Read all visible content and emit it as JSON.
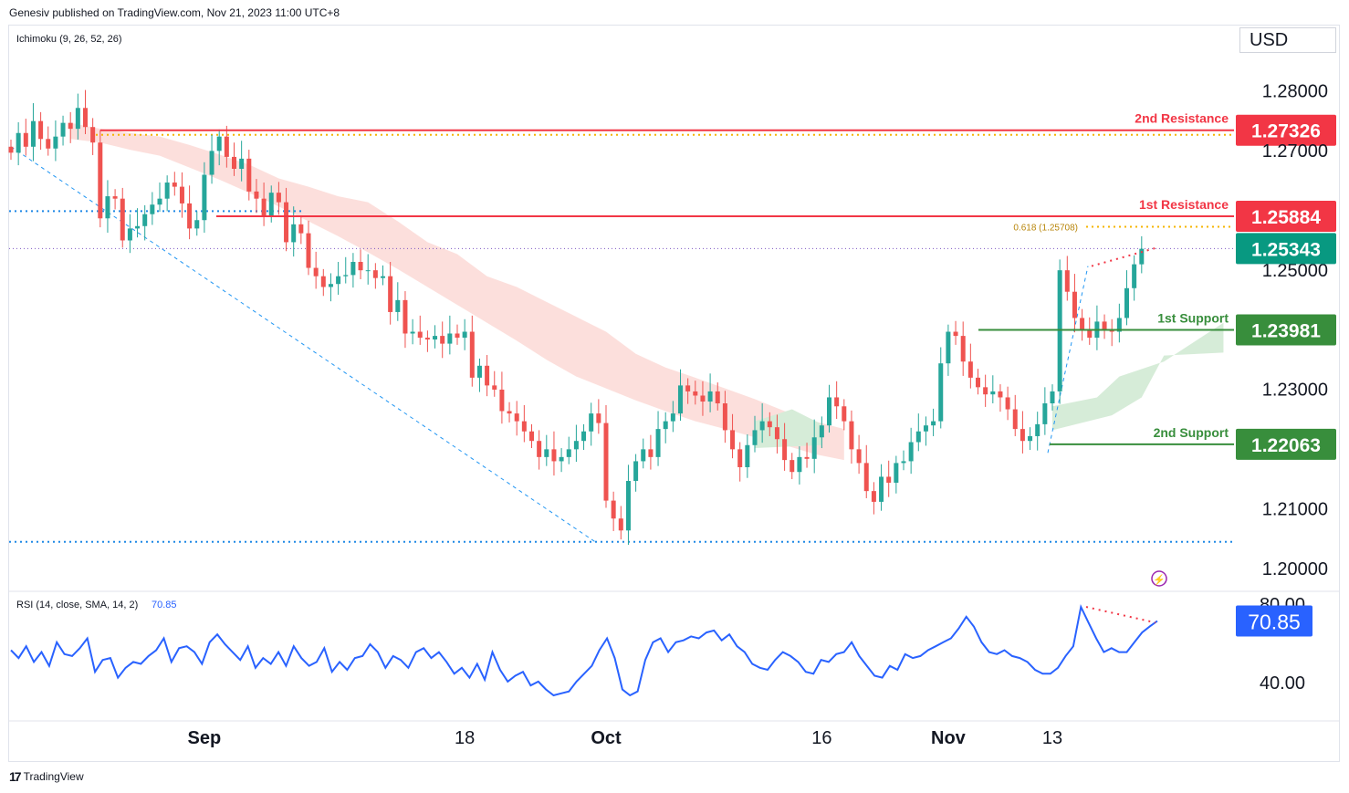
{
  "header": {
    "publisher_text": "Genesiv published on TradingView.com, Nov 21, 2023 11:00 UTC+8",
    "indicator_label": "Ichimoku (9, 26, 52, 26)",
    "currency": "USD"
  },
  "footer": {
    "logo_glyph": "17",
    "brand": "TradingView"
  },
  "colors": {
    "up": "#26a69a",
    "down": "#ef5350",
    "resistance": "#f23645",
    "support": "#388e3c",
    "current": "#089981",
    "rsi": "#2962ff",
    "kumo_bear": "#fcd9d6",
    "kumo_bull": "#d6ecd8",
    "fib": "#f5b400",
    "trendline": "#2196f3"
  },
  "chart_data": [
    {
      "type": "candlestick",
      "title": "",
      "price_axis": {
        "ticks": [
          "1.28000",
          "1.27000",
          "1.25000",
          "1.23000",
          "1.21000",
          "1.20000"
        ],
        "tick_values": [
          1.28,
          1.27,
          1.25,
          1.23,
          1.21,
          1.2
        ],
        "ylim": [
          1.196,
          1.2905
        ]
      },
      "time_axis": {
        "labels": [
          "Sep",
          "18",
          "Oct",
          "16",
          "Nov",
          "13"
        ],
        "label_bars": [
          26,
          61,
          80,
          109,
          126,
          140
        ],
        "bold": [
          true,
          false,
          true,
          false,
          true,
          false
        ]
      },
      "levels": [
        {
          "name": "2nd Resistance",
          "value": "1.27326",
          "price": 1.27326,
          "kind": "resistance"
        },
        {
          "name": "1st Resistance",
          "value": "1.25884",
          "price": 1.25884,
          "kind": "resistance"
        },
        {
          "name": "1st Support",
          "value": "1.23981",
          "price": 1.23981,
          "kind": "support"
        },
        {
          "name": "2nd Support",
          "value": "1.22063",
          "price": 1.22063,
          "kind": "support"
        }
      ],
      "current_price": {
        "value": "1.25343",
        "price": 1.25343
      },
      "fib_label": "0.618 (1.25708)",
      "fib_price": 1.25708,
      "dotted_levels": [
        1.2725,
        1.2597,
        1.2043
      ],
      "close_series": [
        1.2695,
        1.2728,
        1.2705,
        1.2748,
        1.2718,
        1.2702,
        1.2722,
        1.2745,
        1.2735,
        1.277,
        1.2738,
        1.2712,
        1.2585,
        1.2622,
        1.2618,
        1.2548,
        1.2568,
        1.2572,
        1.2592,
        1.2608,
        1.2618,
        1.2645,
        1.2638,
        1.261,
        1.2568,
        1.2582,
        1.2658,
        1.2698,
        1.2722,
        1.2688,
        1.2668,
        1.2685,
        1.263,
        1.2618,
        1.259,
        1.2628,
        1.2612,
        1.2545,
        1.2575,
        1.256,
        1.2502,
        1.2488,
        1.247,
        1.2475,
        1.2488,
        1.249,
        1.2512,
        1.2498,
        1.2498,
        1.2485,
        1.2488,
        1.2428,
        1.2448,
        1.2392,
        1.2395,
        1.2385,
        1.2382,
        1.2388,
        1.2375,
        1.2392,
        1.2385,
        1.2395,
        1.2318,
        1.2338,
        1.2305,
        1.2298,
        1.2262,
        1.2258,
        1.2245,
        1.2228,
        1.2212,
        1.2185,
        1.2198,
        1.2178,
        1.2185,
        1.2198,
        1.2212,
        1.2228,
        1.2258,
        1.2242,
        1.2112,
        1.2082,
        1.2062,
        1.2145,
        1.2178,
        1.2198,
        1.2185,
        1.2232,
        1.2245,
        1.2258,
        1.2305,
        1.2295,
        1.2288,
        1.2278,
        1.2295,
        1.2275,
        1.223,
        1.2198,
        1.2168,
        1.2205,
        1.223,
        1.2245,
        1.2235,
        1.2215,
        1.218,
        1.216,
        1.2185,
        1.2182,
        1.2218,
        1.2238,
        1.2285,
        1.227,
        1.2245,
        1.2198,
        1.2175,
        1.2128,
        1.211,
        1.2152,
        1.2142,
        1.2175,
        1.2178,
        1.221,
        1.2228,
        1.2238,
        1.2245,
        1.2342,
        1.2395,
        1.2388,
        1.2345,
        1.2318,
        1.2302,
        1.229,
        1.2295,
        1.2285,
        1.2265,
        1.2232,
        1.2212,
        1.222,
        1.224,
        1.2275,
        1.2295,
        1.2498,
        1.2462,
        1.2418,
        1.2398,
        1.2385,
        1.2412,
        1.2398,
        1.2395,
        1.2418,
        1.2468,
        1.2508,
        1.2534
      ],
      "ichimoku_cloud": [
        {
          "price_top": [
            1.2745,
            1.2735,
            1.2728,
            1.2722,
            1.2708,
            1.2692,
            1.2675,
            1.2652,
            1.2638,
            1.2622,
            1.2612,
            1.258,
            1.2545,
            1.2525,
            1.2488,
            1.247,
            1.2445,
            1.242,
            1.2395,
            1.2358,
            1.2335,
            1.2318,
            1.23,
            1.2282,
            1.2262,
            1.2245,
            1.2232
          ],
          "price_bottom": [
            1.2718,
            1.2712,
            1.27,
            1.269,
            1.267,
            1.265,
            1.2628,
            1.2605,
            1.258,
            1.2555,
            1.2528,
            1.25,
            1.247,
            1.244,
            1.241,
            1.238,
            1.2348,
            1.232,
            1.23,
            1.228,
            1.2262,
            1.2245,
            1.2232,
            1.2218,
            1.2205,
            1.219,
            1.218
          ],
          "start_bar": 8,
          "step": 4,
          "color": "bear"
        }
      ],
      "x": []
    },
    {
      "type": "line",
      "title": "",
      "indicator_label": "RSI (14, close, SMA, 14, 2)",
      "indicator_value": "70.85",
      "ticks": [
        "80.00",
        "40.00"
      ],
      "tick_values": [
        80,
        40
      ],
      "ylim": [
        20,
        85
      ],
      "values": [
        56,
        52,
        58,
        50,
        55,
        48,
        60,
        54,
        53,
        57,
        62,
        45,
        51,
        52,
        42,
        47,
        50,
        49,
        53,
        56,
        62,
        50,
        57,
        58,
        55,
        49,
        60,
        64,
        59,
        55,
        51,
        58,
        47,
        52,
        49,
        55,
        48,
        58,
        52,
        48,
        50,
        57,
        45,
        50,
        46,
        52,
        53,
        59,
        55,
        47,
        53,
        51,
        47,
        55,
        57,
        52,
        55,
        50,
        44,
        47,
        42,
        49,
        41,
        55,
        46,
        40,
        43,
        45,
        38,
        40,
        36,
        33,
        34,
        35,
        40,
        44,
        48,
        56,
        62,
        52,
        36,
        33,
        35,
        51,
        60,
        62,
        55,
        60,
        61,
        63,
        62,
        65,
        66,
        61,
        64,
        58,
        55,
        49,
        47,
        46,
        51,
        55,
        53,
        50,
        45,
        44,
        51,
        50,
        54,
        55,
        60,
        53,
        48,
        43,
        42,
        48,
        46,
        54,
        52,
        53,
        56,
        58,
        60,
        62,
        67,
        73,
        68,
        60,
        55,
        54,
        56,
        53,
        52,
        50,
        46,
        44,
        44,
        47,
        53,
        58,
        78,
        70,
        62,
        55,
        57,
        55,
        55,
        60,
        65,
        68,
        70.85
      ]
    }
  ]
}
